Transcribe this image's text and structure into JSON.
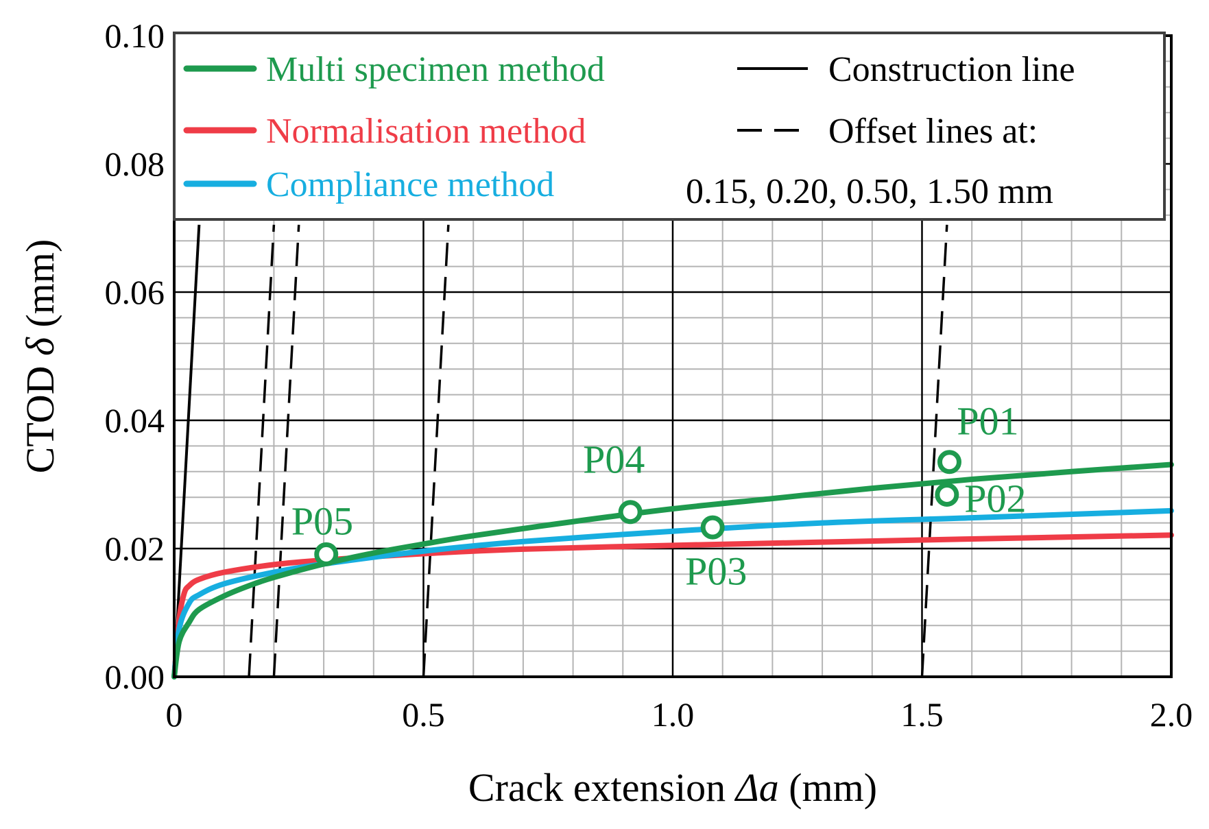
{
  "chart_data": {
    "type": "line",
    "title": "",
    "xlabel_prefix": "Crack extension ",
    "xlabel_symbol": "Δa",
    "xlabel_suffix": " (mm)",
    "ylabel_prefix": "CTOD ",
    "ylabel_symbol": "δ",
    "ylabel_suffix": " (mm)",
    "xlim": [
      0,
      2.0
    ],
    "ylim": [
      0,
      0.1
    ],
    "x_ticks": [
      "0",
      "0.5",
      "1.0",
      "1.5",
      "2.0"
    ],
    "x_tick_values": [
      0,
      0.5,
      1.0,
      1.5,
      2.0
    ],
    "y_ticks": [
      "0.00",
      "0.02",
      "0.04",
      "0.06",
      "0.08",
      "0.10"
    ],
    "y_tick_values": [
      0,
      0.02,
      0.04,
      0.06,
      0.08,
      0.1
    ],
    "grid": true,
    "grid_major_x": 0.5,
    "grid_minor_x": 0.1,
    "grid_major_y": 0.02,
    "grid_minor_y": 0.004,
    "series": [
      {
        "name": "Multi specimen method",
        "color": "#1e9a4e",
        "x": [
          0,
          0.01,
          0.03,
          0.05,
          0.1,
          0.15,
          0.2,
          0.3,
          0.4,
          0.5,
          0.6,
          0.8,
          1.0,
          1.2,
          1.4,
          1.6,
          1.8,
          2.0
        ],
        "y": [
          0,
          0.0055,
          0.0085,
          0.0105,
          0.0126,
          0.0142,
          0.0155,
          0.0176,
          0.0193,
          0.0207,
          0.022,
          0.0242,
          0.0262,
          0.0278,
          0.0294,
          0.0308,
          0.032,
          0.0331
        ]
      },
      {
        "name": "Normalisation method",
        "color": "#ef3c47",
        "x": [
          0,
          0.01,
          0.02,
          0.03,
          0.05,
          0.1,
          0.2,
          0.3,
          0.5,
          0.7,
          1.0,
          1.3,
          1.6,
          2.0
        ],
        "y": [
          0,
          0.009,
          0.013,
          0.0142,
          0.0152,
          0.0163,
          0.0175,
          0.0182,
          0.0192,
          0.0199,
          0.0205,
          0.021,
          0.0215,
          0.0221
        ]
      },
      {
        "name": "Compliance method",
        "color": "#17aee0",
        "x": [
          0,
          0.01,
          0.03,
          0.05,
          0.1,
          0.2,
          0.3,
          0.5,
          0.7,
          1.0,
          1.3,
          1.6,
          2.0
        ],
        "y": [
          0,
          0.0075,
          0.0115,
          0.0128,
          0.0145,
          0.0163,
          0.0176,
          0.0196,
          0.0211,
          0.0227,
          0.024,
          0.0248,
          0.0259
        ]
      }
    ],
    "construction_line": {
      "name": "Construction line",
      "x": [
        0,
        0.05
      ],
      "y": [
        0,
        0.0705
      ]
    },
    "offset_lines_label": "Offset lines at:",
    "offset_lines_values_label": "0.15, 0.20, 0.50, 1.50 mm",
    "offset_lines": [
      0.15,
      0.2,
      0.5,
      1.5
    ],
    "offset_line_slope": 1.41,
    "points": [
      {
        "label": "P01",
        "x": 1.555,
        "y": 0.0335,
        "label_x": 1.57,
        "label_y": 0.0378
      },
      {
        "label": "P02",
        "x": 1.55,
        "y": 0.0284,
        "label_x": 1.585,
        "label_y": 0.0257
      },
      {
        "label": "P03",
        "x": 1.08,
        "y": 0.0233,
        "label_x": 1.025,
        "label_y": 0.0144
      },
      {
        "label": "P04",
        "x": 0.915,
        "y": 0.0257,
        "label_x": 0.82,
        "label_y": 0.0318
      },
      {
        "label": "P05",
        "x": 0.305,
        "y": 0.0191,
        "label_x": 0.235,
        "label_y": 0.0222
      }
    ],
    "legend_position": "top"
  }
}
